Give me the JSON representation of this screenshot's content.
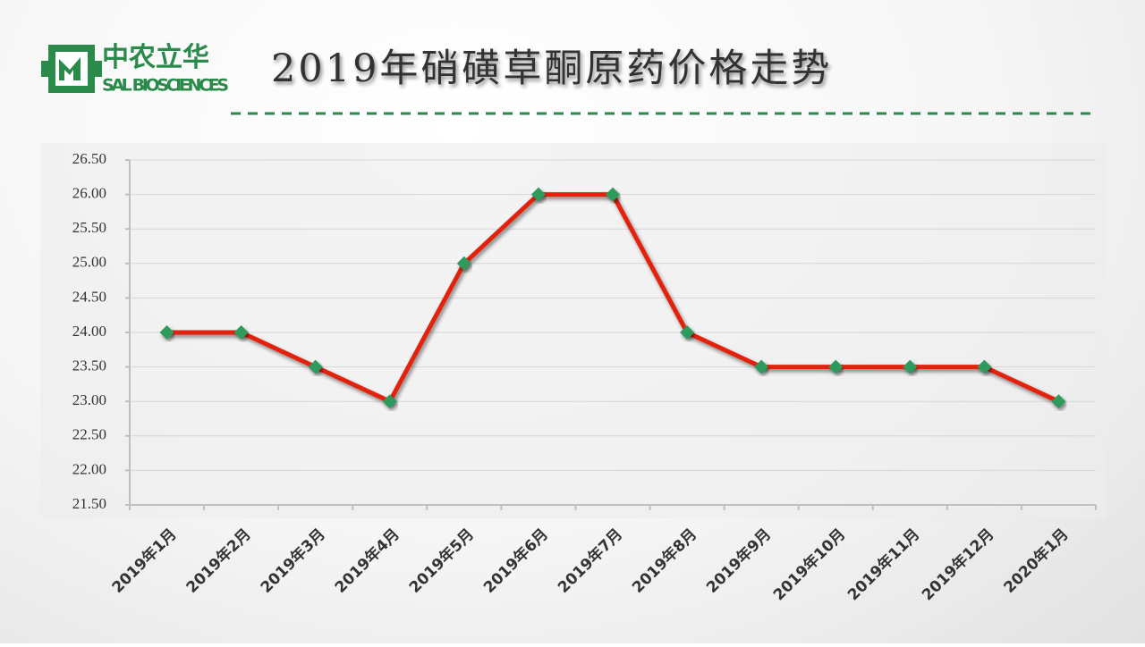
{
  "logo": {
    "name": "中农立华",
    "subtitle": "SAL BIOSCIENCES"
  },
  "chart_data": {
    "type": "line",
    "title": "2019年硝磺草酮原药价格走势",
    "categories": [
      "2019年1月",
      "2019年2月",
      "2019年3月",
      "2019年4月",
      "2019年5月",
      "2019年6月",
      "2019年7月",
      "2019年8月",
      "2019年9月",
      "2019年10月",
      "2019年11月",
      "2019年12月",
      "2020年1月"
    ],
    "series": [
      {
        "color": "#e3230f",
        "marker_color": "#2f9a5c",
        "values": [
          24,
          24,
          23.5,
          23,
          25,
          26,
          26,
          24,
          23.5,
          23.5,
          23.5,
          23.5,
          23
        ]
      }
    ],
    "ylim": [
      21.5,
      26.5
    ],
    "yticks": [
      {
        "value": 21.5,
        "label": "21.50"
      },
      {
        "value": 22,
        "label": "22.00"
      },
      {
        "value": 22.5,
        "label": "22.50"
      },
      {
        "value": 23,
        "label": "23.00"
      },
      {
        "value": 23.5,
        "label": "23.50"
      },
      {
        "value": 24,
        "label": "24.00"
      },
      {
        "value": 24.5,
        "label": "24.50"
      },
      {
        "value": 25,
        "label": "25.00"
      },
      {
        "value": 25.5,
        "label": "25.50"
      },
      {
        "value": 26,
        "label": "26.00"
      },
      {
        "value": 26.5,
        "label": "26.50"
      }
    ],
    "grid": true
  }
}
